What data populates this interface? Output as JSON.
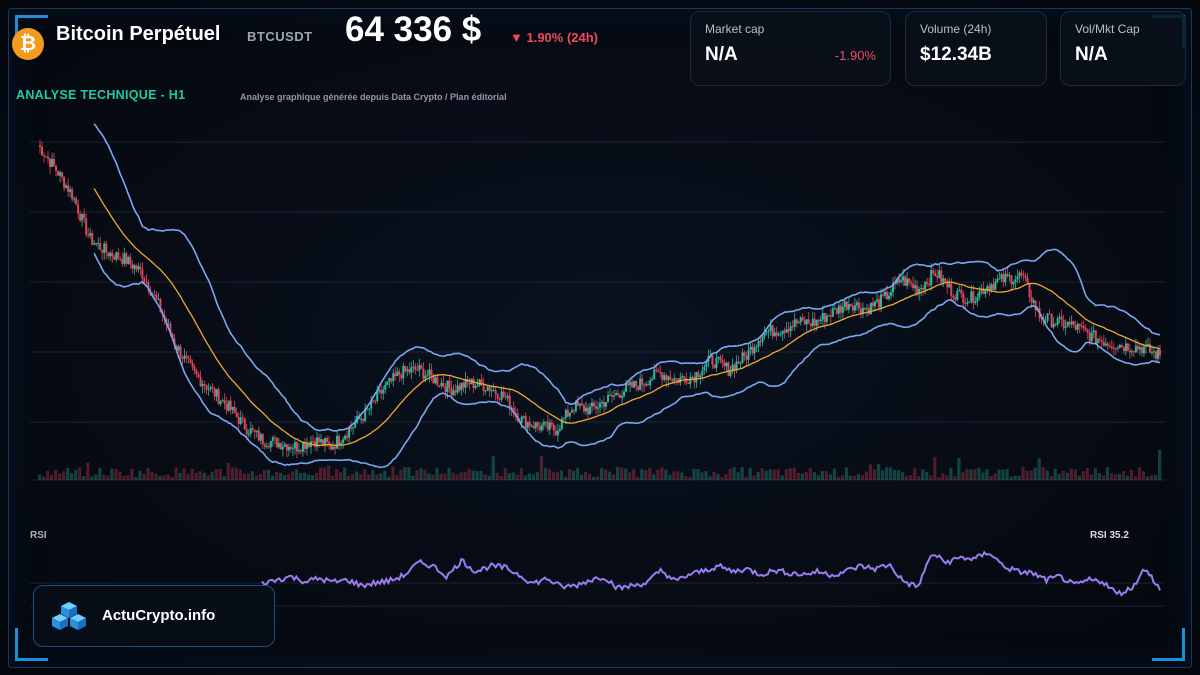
{
  "header": {
    "asset_name": "Bitcoin Perpétuel",
    "ticker": "BTCUSDT",
    "price": "64 336 $",
    "change": "▼ 1.90% (24h)",
    "logo_glyph": "₿"
  },
  "stats": [
    {
      "label": "Market cap",
      "value": "N/A",
      "delta": "-1.90%"
    },
    {
      "label": "Volume (24h)",
      "value": "$12.34B",
      "delta": ""
    },
    {
      "label": "Vol/Mkt Cap",
      "value": "N/A",
      "delta": ""
    }
  ],
  "section": {
    "title": "ANALYSE TECHNIQUE - H1",
    "subtitle": "Analyse graphique générée depuis Data Crypto / Plan éditorial"
  },
  "rsi": {
    "label": "RSI",
    "value_label": "RSI 35.2"
  },
  "brand": {
    "name": "ActuCrypto.info"
  },
  "colors": {
    "up": "#2fb89a",
    "down": "#e0455a",
    "ma": "#f0a830",
    "bands": "#7aa7f0",
    "rsi": "#9b7cf0",
    "accent": "#1ec9a7"
  },
  "chart_data": [
    {
      "type": "line",
      "title": "ANALYSE TECHNIQUE - H1",
      "series": [
        {
          "values": [
            100,
            93,
            85,
            72,
            68,
            66,
            62,
            52,
            40,
            32,
            27,
            22,
            16,
            12,
            11,
            10,
            12,
            10,
            15,
            20,
            27,
            32,
            33,
            30,
            27,
            29,
            28,
            25,
            18,
            16,
            15,
            22,
            21,
            24,
            27,
            29,
            32,
            30,
            31,
            36,
            33,
            37,
            44,
            45,
            47,
            47,
            50,
            53,
            51,
            54,
            60,
            57,
            62,
            56,
            54,
            58,
            60,
            61,
            49,
            47,
            46,
            43,
            41,
            40,
            39.5,
            37
          ]
        }
      ]
    },
    {
      "type": "line",
      "title": "RSI",
      "series": [
        {
          "values": [
            45,
            50,
            55,
            48,
            52,
            47,
            50,
            42,
            46,
            49,
            57,
            75,
            70,
            55,
            78,
            62,
            70,
            68,
            58,
            45,
            52,
            40,
            42,
            50,
            55,
            38,
            42,
            46,
            64,
            48,
            58,
            63,
            70,
            62,
            66,
            58,
            64,
            60,
            58,
            62,
            57,
            63,
            70,
            66,
            72,
            48,
            40,
            88,
            75,
            82,
            80,
            90,
            70,
            62,
            60,
            50,
            55,
            42,
            50,
            48,
            30,
            38,
            68,
            35.2
          ]
        }
      ]
    }
  ]
}
